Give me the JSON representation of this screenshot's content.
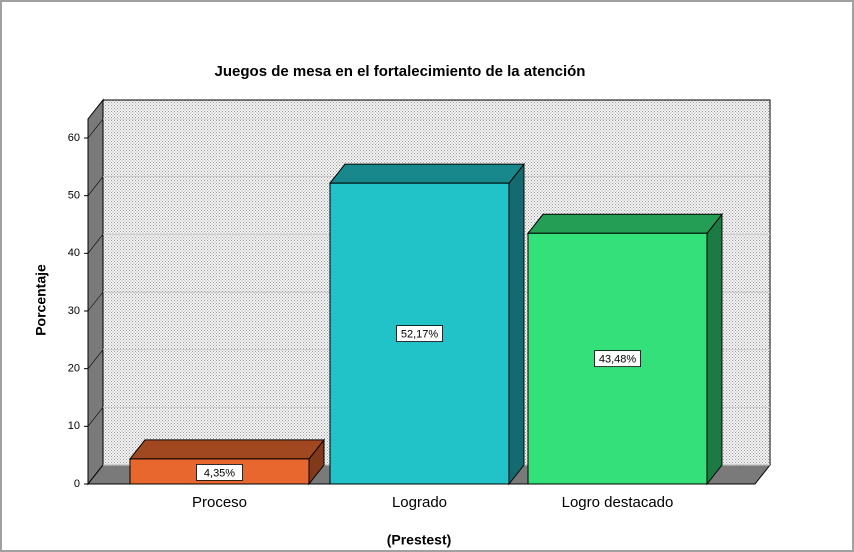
{
  "chart_data": {
    "type": "bar3d",
    "title": "Juegos de mesa en el fortalecimiento de la atención",
    "xlabel": "(Prestest)",
    "ylabel": "Porcentaje",
    "categories": [
      "Proceso",
      "Logrado",
      "Logro destacado"
    ],
    "values": [
      4.35,
      52.17,
      43.48
    ],
    "value_labels": [
      "4,35%",
      "52,17%",
      "43,48%"
    ],
    "colors": [
      "#e8672e",
      "#22c2c9",
      "#33e07a"
    ],
    "ylim": [
      0,
      60
    ],
    "yticks": [
      0,
      10,
      20,
      30,
      40,
      50,
      60
    ],
    "grid": true
  }
}
